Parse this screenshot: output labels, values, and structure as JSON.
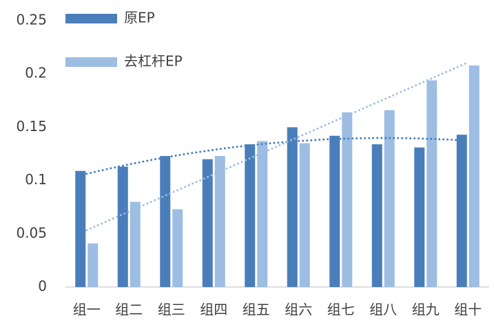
{
  "chart_data": {
    "type": "bar",
    "categories": [
      "组一",
      "组二",
      "组三",
      "组四",
      "组五",
      "组六",
      "组七",
      "组八",
      "组九",
      "组十"
    ],
    "series": [
      {
        "name": "原EP",
        "color": "#4a7ebb",
        "trendline": "poly2",
        "values": [
          0.109,
          0.113,
          0.123,
          0.12,
          0.134,
          0.15,
          0.142,
          0.134,
          0.131,
          0.143
        ]
      },
      {
        "name": "去杠杆EP",
        "color": "#9dbde3",
        "trendline": "linear",
        "values": [
          0.041,
          0.08,
          0.073,
          0.123,
          0.137,
          0.135,
          0.164,
          0.166,
          0.194,
          0.208
        ]
      }
    ],
    "ylim": [
      0,
      0.25
    ],
    "yticks": [
      0,
      0.05,
      0.1,
      0.15,
      0.2,
      0.25
    ],
    "grid": false,
    "legend": "top-left"
  }
}
